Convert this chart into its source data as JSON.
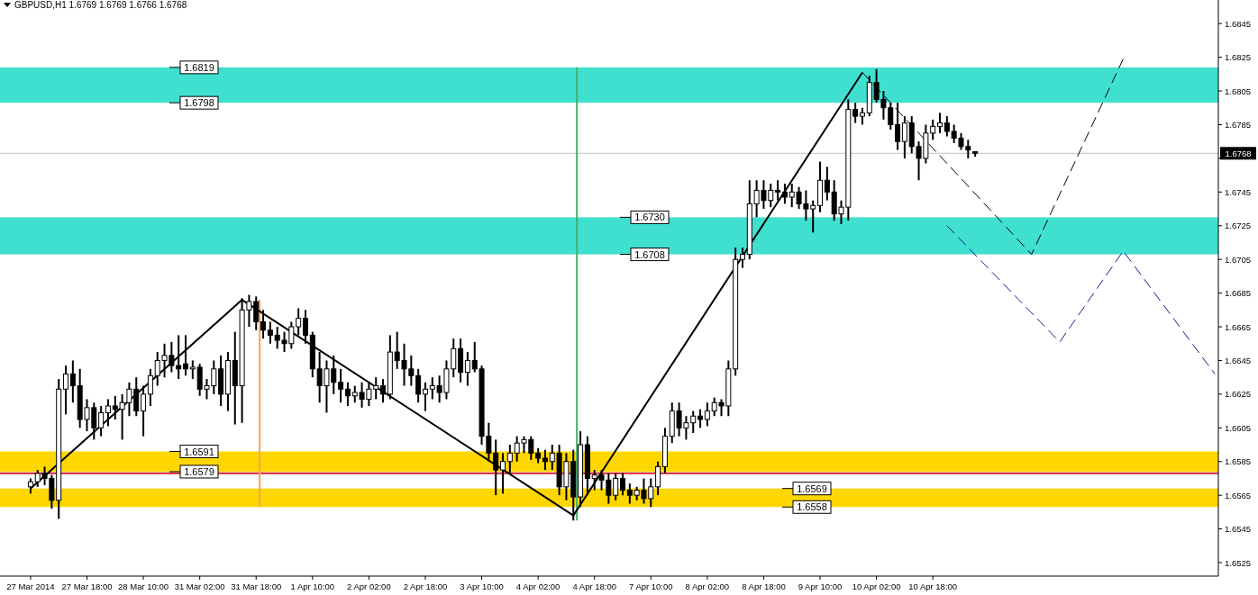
{
  "chart_data": {
    "type": "candlestick",
    "title": "GBPUSD,H1  1.6769 1.6769 1.6766 1.6768",
    "categories": [
      "27 Mar 2014",
      null,
      null,
      null,
      null,
      null,
      null,
      null,
      "27 Mar 18:00",
      null,
      null,
      null,
      null,
      null,
      null,
      null,
      "28 Mar 10:00",
      null,
      null,
      null,
      null,
      null,
      null,
      null,
      "31 Mar 02:00",
      null,
      null,
      null,
      null,
      null,
      null,
      null,
      "31 Mar 18:00",
      null,
      null,
      null,
      null,
      null,
      null,
      null,
      "1 Apr 10:00",
      null,
      null,
      null,
      null,
      null,
      null,
      null,
      "2 Apr 02:00",
      null,
      null,
      null,
      null,
      null,
      null,
      null,
      "2 Apr 18:00",
      null,
      null,
      null,
      null,
      null,
      null,
      null,
      "3 Apr 10:00",
      null,
      null,
      null,
      null,
      null,
      null,
      null,
      "4 Apr 02:00",
      null,
      null,
      null,
      null,
      null,
      null,
      null,
      "4 Apr 18:00",
      null,
      null,
      null,
      null,
      null,
      null,
      null,
      "7 Apr 10:00",
      null,
      null,
      null,
      null,
      null,
      null,
      null,
      "8 Apr 02:00",
      null,
      null,
      null,
      null,
      null,
      null,
      null,
      "8 Apr 18:00",
      null,
      null,
      null,
      null,
      null,
      null,
      null,
      "9 Apr 10:00",
      null,
      null,
      null,
      null,
      null,
      null,
      null,
      "10 Apr 02:00",
      null,
      null,
      null,
      null,
      null,
      null,
      null,
      "10 Apr 18:00",
      null,
      null,
      null,
      null,
      null,
      null,
      null,
      null,
      null,
      null,
      null,
      null,
      null,
      null,
      null,
      null,
      null,
      null,
      null,
      null,
      null,
      null,
      null,
      null,
      null,
      null,
      null,
      null,
      null,
      null,
      null,
      null,
      null,
      null,
      null,
      null,
      null,
      null,
      null,
      null
    ],
    "ohlc": [
      [
        1.657,
        1.6575,
        1.6566,
        1.6573
      ],
      [
        1.6573,
        1.658,
        1.657,
        1.6578
      ],
      [
        1.6578,
        1.6582,
        1.6571,
        1.6575
      ],
      [
        1.6575,
        1.6577,
        1.6557,
        1.6562
      ],
      [
        1.6562,
        1.6634,
        1.6551,
        1.6628
      ],
      [
        1.6628,
        1.6642,
        1.6613,
        1.6637
      ],
      [
        1.6637,
        1.6645,
        1.662,
        1.663
      ],
      [
        1.663,
        1.664,
        1.6605,
        1.661
      ],
      [
        1.661,
        1.6622,
        1.6603,
        1.6617
      ],
      [
        1.6617,
        1.662,
        1.6598,
        1.6605
      ],
      [
        1.6605,
        1.6618,
        1.66,
        1.6614
      ],
      [
        1.6614,
        1.6622,
        1.6606,
        1.6618
      ],
      [
        1.6618,
        1.6624,
        1.661,
        1.6616
      ],
      [
        1.6616,
        1.6625,
        1.6598,
        1.662
      ],
      [
        1.662,
        1.6632,
        1.6612,
        1.6628
      ],
      [
        1.6628,
        1.6635,
        1.6612,
        1.6615
      ],
      [
        1.6615,
        1.663,
        1.66,
        1.6625
      ],
      [
        1.6625,
        1.664,
        1.6618,
        1.6636
      ],
      [
        1.6636,
        1.665,
        1.663,
        1.6645
      ],
      [
        1.6645,
        1.6655,
        1.6635,
        1.6648
      ],
      [
        1.6648,
        1.6656,
        1.6638,
        1.6642
      ],
      [
        1.6642,
        1.666,
        1.6634,
        1.664
      ],
      [
        1.6643,
        1.666,
        1.6636,
        1.664
      ],
      [
        1.664,
        1.6645,
        1.6634,
        1.6641
      ],
      [
        1.6641,
        1.6643,
        1.6624,
        1.6628
      ],
      [
        1.6628,
        1.6634,
        1.6622,
        1.663
      ],
      [
        1.663,
        1.6645,
        1.6625,
        1.664
      ],
      [
        1.664,
        1.6648,
        1.6618,
        1.6625
      ],
      [
        1.6625,
        1.665,
        1.6615,
        1.6645
      ],
      [
        1.6645,
        1.6662,
        1.6607,
        1.663
      ],
      [
        1.663,
        1.6682,
        1.6608,
        1.6675
      ],
      [
        1.6675,
        1.6684,
        1.6665,
        1.668
      ],
      [
        1.668,
        1.6683,
        1.6663,
        1.6668
      ],
      [
        1.6668,
        1.6675,
        1.6658,
        1.6663
      ],
      [
        1.6663,
        1.6668,
        1.6655,
        1.666
      ],
      [
        1.666,
        1.6665,
        1.6652,
        1.6657
      ],
      [
        1.6657,
        1.6662,
        1.665,
        1.6655
      ],
      [
        1.6655,
        1.6668,
        1.6652,
        1.6665
      ],
      [
        1.6665,
        1.6676,
        1.666,
        1.667
      ],
      [
        1.667,
        1.6675,
        1.6655,
        1.666
      ],
      [
        1.666,
        1.6662,
        1.6635,
        1.664
      ],
      [
        1.664,
        1.665,
        1.662,
        1.663
      ],
      [
        1.663,
        1.6645,
        1.6614,
        1.664
      ],
      [
        1.664,
        1.6648,
        1.6625,
        1.6632
      ],
      [
        1.6632,
        1.664,
        1.662,
        1.6628
      ],
      [
        1.6628,
        1.6632,
        1.6618,
        1.6624
      ],
      [
        1.6624,
        1.663,
        1.662,
        1.6626
      ],
      [
        1.6626,
        1.6632,
        1.6617,
        1.6622
      ],
      [
        1.6622,
        1.6632,
        1.6618,
        1.6628
      ],
      [
        1.6628,
        1.6635,
        1.6622,
        1.663
      ],
      [
        1.663,
        1.6634,
        1.662,
        1.6625
      ],
      [
        1.6625,
        1.666,
        1.6622,
        1.665
      ],
      [
        1.665,
        1.6662,
        1.664,
        1.6645
      ],
      [
        1.6645,
        1.6655,
        1.663,
        1.664
      ],
      [
        1.664,
        1.6648,
        1.663,
        1.6636
      ],
      [
        1.6636,
        1.664,
        1.662,
        1.6625
      ],
      [
        1.6625,
        1.6632,
        1.6615,
        1.6628
      ],
      [
        1.6628,
        1.6635,
        1.6622,
        1.663
      ],
      [
        1.663,
        1.6636,
        1.662,
        1.6626
      ],
      [
        1.6626,
        1.6645,
        1.6622,
        1.664
      ],
      [
        1.664,
        1.6658,
        1.6635,
        1.6652
      ],
      [
        1.6652,
        1.6658,
        1.6632,
        1.6638
      ],
      [
        1.6638,
        1.665,
        1.663,
        1.6645
      ],
      [
        1.6645,
        1.6656,
        1.6638,
        1.664
      ],
      [
        1.664,
        1.6642,
        1.6595,
        1.66
      ],
      [
        1.66,
        1.6608,
        1.6585,
        1.659
      ],
      [
        1.659,
        1.6598,
        1.6565,
        1.658
      ],
      [
        1.658,
        1.659,
        1.6566,
        1.6585
      ],
      [
        1.6585,
        1.6595,
        1.6578,
        1.659
      ],
      [
        1.659,
        1.66,
        1.6585,
        1.6596
      ],
      [
        1.6596,
        1.66,
        1.659,
        1.6598
      ],
      [
        1.6598,
        1.66,
        1.6586,
        1.659
      ],
      [
        1.659,
        1.6593,
        1.6584,
        1.6587
      ],
      [
        1.6587,
        1.6592,
        1.658,
        1.6585
      ],
      [
        1.6585,
        1.6595,
        1.658,
        1.659
      ],
      [
        1.659,
        1.6595,
        1.6565,
        1.657
      ],
      [
        1.657,
        1.659,
        1.6562,
        1.6585
      ],
      [
        1.6585,
        1.6592,
        1.655,
        1.6564
      ],
      [
        1.6564,
        1.6603,
        1.6558,
        1.6595
      ],
      [
        1.6595,
        1.66,
        1.6565,
        1.6575
      ],
      [
        1.6575,
        1.658,
        1.6568,
        1.6577
      ],
      [
        1.6577,
        1.658,
        1.6568,
        1.6574
      ],
      [
        1.6574,
        1.6578,
        1.656,
        1.6565
      ],
      [
        1.6565,
        1.6578,
        1.6562,
        1.6575
      ],
      [
        1.6575,
        1.6578,
        1.6565,
        1.6568
      ],
      [
        1.6568,
        1.6572,
        1.656,
        1.6565
      ],
      [
        1.6565,
        1.657,
        1.6562,
        1.6568
      ],
      [
        1.6568,
        1.6575,
        1.656,
        1.6563
      ],
      [
        1.6563,
        1.6575,
        1.6558,
        1.657
      ],
      [
        1.657,
        1.6585,
        1.6565,
        1.6582
      ],
      [
        1.6582,
        1.6605,
        1.6578,
        1.66
      ],
      [
        1.66,
        1.662,
        1.6596,
        1.6615
      ],
      [
        1.6615,
        1.662,
        1.66,
        1.6605
      ],
      [
        1.6605,
        1.6612,
        1.6598,
        1.6608
      ],
      [
        1.6608,
        1.6615,
        1.6602,
        1.6612
      ],
      [
        1.6612,
        1.6616,
        1.6605,
        1.661
      ],
      [
        1.661,
        1.662,
        1.6606,
        1.6615
      ],
      [
        1.6615,
        1.6623,
        1.6612,
        1.662
      ],
      [
        1.662,
        1.6622,
        1.6612,
        1.6618
      ],
      [
        1.6618,
        1.6645,
        1.6612,
        1.664
      ],
      [
        1.664,
        1.6712,
        1.6636,
        1.6705
      ],
      [
        1.6705,
        1.6712,
        1.67,
        1.6708
      ],
      [
        1.6708,
        1.6752,
        1.6705,
        1.6738
      ],
      [
        1.6738,
        1.6752,
        1.673,
        1.6746
      ],
      [
        1.6746,
        1.6752,
        1.6735,
        1.674
      ],
      [
        1.674,
        1.675,
        1.6736,
        1.6746
      ],
      [
        1.6746,
        1.6752,
        1.674,
        1.6745
      ],
      [
        1.6745,
        1.675,
        1.6738,
        1.6742
      ],
      [
        1.6742,
        1.675,
        1.6736,
        1.6745
      ],
      [
        1.6745,
        1.6748,
        1.6735,
        1.6738
      ],
      [
        1.6738,
        1.6746,
        1.6728,
        1.6735
      ],
      [
        1.6735,
        1.674,
        1.6721,
        1.6737
      ],
      [
        1.6737,
        1.6763,
        1.6733,
        1.6752
      ],
      [
        1.6752,
        1.676,
        1.674,
        1.6745
      ],
      [
        1.6745,
        1.6752,
        1.6728,
        1.6732
      ],
      [
        1.6732,
        1.674,
        1.6726,
        1.6736
      ],
      [
        1.6736,
        1.68,
        1.6728,
        1.6794
      ],
      [
        1.6794,
        1.6798,
        1.6786,
        1.679
      ],
      [
        1.679,
        1.6795,
        1.6785,
        1.6792
      ],
      [
        1.6792,
        1.6814,
        1.679,
        1.681
      ],
      [
        1.681,
        1.6818,
        1.6798,
        1.68
      ],
      [
        1.68,
        1.6805,
        1.6788,
        1.6795
      ],
      [
        1.6795,
        1.6798,
        1.6782,
        1.6785
      ],
      [
        1.6785,
        1.6798,
        1.677,
        1.6775
      ],
      [
        1.6775,
        1.679,
        1.6765,
        1.6786
      ],
      [
        1.6786,
        1.679,
        1.6768,
        1.6772
      ],
      [
        1.6772,
        1.6775,
        1.6752,
        1.6765
      ],
      [
        1.6765,
        1.6785,
        1.6762,
        1.678
      ],
      [
        1.678,
        1.6788,
        1.6776,
        1.6784
      ],
      [
        1.6784,
        1.6792,
        1.678,
        1.6786
      ],
      [
        1.6786,
        1.679,
        1.6778,
        1.6781
      ],
      [
        1.6781,
        1.6785,
        1.6774,
        1.6777
      ],
      [
        1.6777,
        1.678,
        1.677,
        1.6772
      ],
      [
        1.6772,
        1.6776,
        1.6765,
        1.677
      ],
      [
        1.6769,
        1.6769,
        1.6766,
        1.6768
      ],
      null,
      null,
      null,
      null,
      null,
      null,
      null,
      null,
      null,
      null,
      null,
      null,
      null,
      null,
      null,
      null,
      null,
      null,
      null,
      null,
      null,
      null,
      null,
      null,
      null,
      null,
      null,
      null,
      null,
      null,
      null,
      null,
      null,
      null
    ],
    "series": [
      {
        "type": "line",
        "color": "#000000",
        "line_style": "solid",
        "values": [
          1.6569,
          null,
          null,
          null,
          null,
          null,
          null,
          null,
          null,
          null,
          null,
          null,
          null,
          null,
          null,
          null,
          null,
          null,
          null,
          null,
          null,
          null,
          null,
          null,
          null,
          null,
          null,
          null,
          null,
          null,
          1.6681,
          null,
          null,
          null,
          null,
          null,
          null,
          null,
          null,
          null,
          null,
          null,
          null,
          null,
          null,
          null,
          null,
          null,
          null,
          null,
          null,
          null,
          null,
          null,
          null,
          null,
          null,
          null,
          null,
          null,
          null,
          null,
          null,
          null,
          null,
          null,
          null,
          null,
          null,
          null,
          null,
          null,
          null,
          null,
          null,
          null,
          null,
          1.6553,
          null,
          null,
          null,
          null,
          null,
          null,
          null,
          null,
          null,
          null,
          null,
          null,
          null,
          null,
          null,
          null,
          null,
          null,
          null,
          null,
          null,
          null,
          null,
          null,
          null,
          null,
          null,
          null,
          null,
          null,
          null,
          null,
          null,
          null,
          null,
          null,
          null,
          null,
          null,
          null,
          1.6816,
          null,
          null,
          null,
          null,
          null,
          null,
          null,
          null,
          null,
          null,
          null,
          null,
          null,
          null,
          null,
          null,
          null,
          null,
          null,
          null,
          null,
          null,
          null,
          null,
          null,
          null,
          null,
          null,
          null,
          null,
          null,
          null,
          null,
          null,
          null,
          null,
          null,
          null,
          null,
          null,
          null,
          null,
          null,
          null,
          null,
          null,
          null,
          null,
          null,
          null
        ]
      },
      {
        "type": "line",
        "color": "#000000",
        "line_style": "dashed",
        "values": [
          null,
          null,
          null,
          null,
          null,
          null,
          null,
          null,
          null,
          null,
          null,
          null,
          null,
          null,
          null,
          null,
          null,
          null,
          null,
          null,
          null,
          null,
          null,
          null,
          null,
          null,
          null,
          null,
          null,
          null,
          null,
          null,
          null,
          null,
          null,
          null,
          null,
          null,
          null,
          null,
          null,
          null,
          null,
          null,
          null,
          null,
          null,
          null,
          null,
          null,
          null,
          null,
          null,
          null,
          null,
          null,
          null,
          null,
          null,
          null,
          null,
          null,
          null,
          null,
          null,
          null,
          null,
          null,
          null,
          null,
          null,
          null,
          null,
          null,
          null,
          null,
          null,
          null,
          null,
          null,
          null,
          null,
          null,
          null,
          null,
          null,
          null,
          null,
          null,
          null,
          null,
          null,
          null,
          null,
          null,
          null,
          null,
          null,
          null,
          null,
          null,
          null,
          null,
          null,
          null,
          null,
          null,
          null,
          null,
          null,
          null,
          null,
          null,
          null,
          null,
          null,
          null,
          null,
          1.6816,
          null,
          null,
          null,
          null,
          null,
          null,
          null,
          null,
          null,
          null,
          null,
          null,
          null,
          null,
          null,
          null,
          null,
          null,
          null,
          null,
          null,
          null,
          null,
          1.6708,
          null,
          null,
          null,
          null,
          null,
          null,
          null,
          null,
          null,
          null,
          null,
          null,
          1.6824,
          null,
          null,
          null,
          null,
          null,
          null,
          null,
          null,
          null,
          null,
          null,
          null,
          null
        ]
      },
      {
        "type": "line",
        "color": "#1a1a8c",
        "line_style": "dashed",
        "values": [
          null,
          null,
          null,
          null,
          null,
          null,
          null,
          null,
          null,
          null,
          null,
          null,
          null,
          null,
          null,
          null,
          null,
          null,
          null,
          null,
          null,
          null,
          null,
          null,
          null,
          null,
          null,
          null,
          null,
          null,
          null,
          null,
          null,
          null,
          null,
          null,
          null,
          null,
          null,
          null,
          null,
          null,
          null,
          null,
          null,
          null,
          null,
          null,
          null,
          null,
          null,
          null,
          null,
          null,
          null,
          null,
          null,
          null,
          null,
          null,
          null,
          null,
          null,
          null,
          null,
          null,
          null,
          null,
          null,
          null,
          null,
          null,
          null,
          null,
          null,
          null,
          null,
          null,
          null,
          null,
          null,
          null,
          null,
          null,
          null,
          null,
          null,
          null,
          null,
          null,
          null,
          null,
          null,
          null,
          null,
          null,
          null,
          null,
          null,
          null,
          null,
          null,
          null,
          null,
          null,
          null,
          null,
          null,
          null,
          null,
          null,
          null,
          null,
          null,
          null,
          null,
          null,
          null,
          null,
          null,
          null,
          null,
          null,
          null,
          null,
          null,
          null,
          null,
          null,
          null,
          1.6725,
          null,
          null,
          null,
          null,
          null,
          null,
          null,
          null,
          null,
          null,
          null,
          null,
          null,
          null,
          null,
          1.6656,
          null,
          null,
          null,
          null,
          null,
          null,
          null,
          null,
          1.671,
          null,
          null,
          null,
          null,
          null,
          null,
          null,
          null,
          null,
          null,
          null,
          null,
          1.6637
        ]
      }
    ],
    "ylim": [
      1.6517,
      1.6859
    ],
    "yticks": [
      1.6525,
      1.6545,
      1.6565,
      1.6585,
      1.6605,
      1.6625,
      1.6645,
      1.6665,
      1.6685,
      1.6705,
      1.6725,
      1.6745,
      {
        "value": 1.6765,
        "label": null
      },
      1.6785,
      1.6805,
      1.6825,
      1.6845
    ],
    "bands": [
      {
        "axis": "y",
        "from": 1.6798,
        "to": 1.6819,
        "color": "#40e0d0"
      },
      {
        "axis": "y",
        "from": 1.6708,
        "to": 1.673,
        "color": "#40e0d0"
      },
      {
        "axis": "y",
        "from": 1.6579,
        "to": 1.6591,
        "color": "#ffd700"
      },
      {
        "axis": "y",
        "from": 1.6558,
        "to": 1.6569,
        "color": "#ffd700"
      }
    ],
    "ref_lines": [
      {
        "axis": "y",
        "value": 1.6768,
        "label": "1.6768",
        "color": "#c0c0c0"
      },
      {
        "axis": "y",
        "value": 1.6578,
        "color": "#d62020"
      }
    ],
    "annotations": [
      {
        "text": "1.6819",
        "y": 1.6819
      },
      {
        "text": "1.6798",
        "y": 1.6798
      },
      {
        "text": "1.6730",
        "y": 1.673
      },
      {
        "text": "1.6708",
        "y": 1.6708
      },
      {
        "text": "1.6591",
        "y": 1.6591
      },
      {
        "text": "1.6579",
        "y": 1.6579
      },
      {
        "text": "1.6569",
        "y": 1.6569
      },
      {
        "text": "1.6558",
        "y": 1.6558
      }
    ],
    "grid": false
  }
}
